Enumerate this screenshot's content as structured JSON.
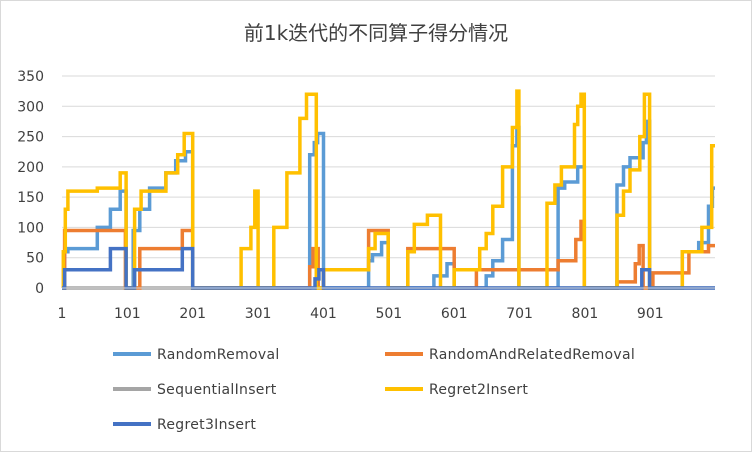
{
  "chart_data": {
    "type": "line",
    "title": "前1k迭代的不同算子得分情况",
    "xlabel": "",
    "ylabel": "",
    "ylim": [
      0,
      350
    ],
    "y_ticks": [
      "0",
      "50",
      "100",
      "150",
      "200",
      "250",
      "300",
      "350"
    ],
    "xlim": [
      1,
      1000
    ],
    "x_ticks": [
      "1",
      "101",
      "201",
      "301",
      "401",
      "501",
      "601",
      "701",
      "801",
      "901"
    ],
    "grid": "horizontal",
    "legend_position": "bottom",
    "series": [
      {
        "name": "RandomRemoval",
        "color": "#5B9BD5",
        "x": [
          1,
          5,
          5,
          10,
          10,
          55,
          55,
          75,
          75,
          90,
          90,
          99,
          99,
          101,
          101,
          110,
          110,
          120,
          120,
          135,
          135,
          160,
          160,
          175,
          175,
          190,
          190,
          201,
          201,
          380,
          380,
          387,
          387,
          392,
          392,
          401,
          401,
          470,
          470,
          476,
          476,
          490,
          490,
          500,
          500,
          570,
          570,
          590,
          590,
          601,
          601,
          650,
          650,
          660,
          660,
          675,
          675,
          690,
          690,
          697,
          697,
          700,
          700,
          760,
          760,
          770,
          770,
          790,
          790,
          800,
          800,
          850,
          850,
          860,
          860,
          870,
          870,
          890,
          890,
          895,
          895,
          900,
          900,
          950,
          950,
          975,
          975,
          990,
          990,
          996,
          996,
          1000
        ],
        "values": [
          0,
          0,
          60,
          60,
          65,
          65,
          100,
          100,
          130,
          130,
          160,
          160,
          0,
          0,
          0,
          0,
          95,
          95,
          130,
          130,
          165,
          165,
          190,
          190,
          210,
          210,
          225,
          225,
          0,
          0,
          220,
          220,
          240,
          240,
          255,
          255,
          0,
          0,
          45,
          45,
          55,
          55,
          75,
          75,
          0,
          0,
          20,
          20,
          40,
          40,
          0,
          0,
          20,
          20,
          45,
          45,
          80,
          80,
          235,
          235,
          265,
          265,
          0,
          0,
          165,
          165,
          175,
          175,
          200,
          200,
          0,
          0,
          170,
          170,
          200,
          200,
          215,
          215,
          240,
          240,
          275,
          275,
          0,
          0,
          60,
          60,
          75,
          75,
          135,
          135,
          165,
          165
        ]
      },
      {
        "name": "RandomAndRelatedRemoval",
        "color": "#ED7D31",
        "x": [
          1,
          5,
          5,
          98,
          98,
          101,
          101,
          120,
          120,
          185,
          185,
          201,
          201,
          380,
          380,
          385,
          385,
          393,
          393,
          401,
          401,
          470,
          470,
          500,
          500,
          530,
          530,
          601,
          601,
          635,
          635,
          760,
          760,
          787,
          787,
          795,
          795,
          800,
          800,
          850,
          850,
          878,
          878,
          884,
          884,
          890,
          890,
          905,
          905,
          960,
          960,
          990,
          990,
          1000
        ],
        "values": [
          0,
          0,
          95,
          95,
          0,
          0,
          0,
          0,
          65,
          65,
          95,
          95,
          0,
          0,
          35,
          35,
          65,
          65,
          0,
          0,
          30,
          30,
          95,
          95,
          0,
          0,
          65,
          65,
          0,
          0,
          30,
          30,
          45,
          45,
          80,
          80,
          110,
          110,
          0,
          0,
          10,
          10,
          40,
          40,
          70,
          70,
          0,
          0,
          25,
          25,
          60,
          60,
          70,
          70
        ]
      },
      {
        "name": "SequentialInsert",
        "color": "#A5A5A5",
        "x": [
          1,
          1000
        ],
        "values": [
          0,
          0
        ]
      },
      {
        "name": "Regret2Insert",
        "color": "#FFC000",
        "x": [
          1,
          3,
          3,
          6,
          6,
          10,
          10,
          55,
          55,
          90,
          90,
          99,
          99,
          101,
          101,
          112,
          112,
          122,
          122,
          160,
          160,
          178,
          178,
          188,
          188,
          201,
          201,
          275,
          275,
          290,
          290,
          296,
          296,
          301,
          301,
          325,
          325,
          345,
          345,
          365,
          365,
          375,
          375,
          390,
          390,
          401,
          401,
          470,
          470,
          480,
          480,
          500,
          500,
          530,
          530,
          540,
          540,
          560,
          560,
          580,
          580,
          601,
          601,
          640,
          640,
          650,
          650,
          660,
          660,
          675,
          675,
          690,
          690,
          697,
          697,
          700,
          700,
          743,
          743,
          755,
          755,
          765,
          765,
          785,
          785,
          790,
          790,
          795,
          795,
          800,
          800,
          850,
          850,
          860,
          860,
          870,
          870,
          885,
          885,
          892,
          892,
          900,
          900,
          950,
          950,
          980,
          980,
          995,
          995,
          1000
        ],
        "values": [
          0,
          0,
          60,
          60,
          130,
          130,
          160,
          160,
          165,
          165,
          190,
          190,
          0,
          0,
          0,
          0,
          130,
          130,
          160,
          160,
          190,
          190,
          220,
          220,
          255,
          255,
          0,
          0,
          65,
          65,
          100,
          100,
          160,
          160,
          0,
          0,
          100,
          100,
          190,
          190,
          280,
          280,
          320,
          320,
          0,
          0,
          30,
          30,
          65,
          65,
          90,
          90,
          0,
          0,
          60,
          60,
          105,
          105,
          120,
          120,
          0,
          0,
          30,
          30,
          65,
          65,
          90,
          90,
          135,
          135,
          200,
          200,
          265,
          265,
          325,
          325,
          0,
          0,
          140,
          140,
          170,
          170,
          200,
          200,
          270,
          270,
          300,
          300,
          320,
          320,
          0,
          0,
          120,
          120,
          160,
          160,
          195,
          195,
          250,
          250,
          320,
          320,
          0,
          0,
          60,
          60,
          100,
          100,
          235,
          235
        ]
      },
      {
        "name": "Regret3Insert",
        "color": "#4472C4",
        "x": [
          1,
          5,
          5,
          75,
          75,
          99,
          99,
          101,
          101,
          112,
          112,
          185,
          185,
          201,
          201,
          388,
          388,
          394,
          394,
          401,
          401,
          888,
          888,
          900,
          900,
          1000
        ],
        "values": [
          0,
          0,
          30,
          30,
          65,
          65,
          0,
          0,
          0,
          0,
          30,
          30,
          65,
          65,
          0,
          0,
          15,
          15,
          30,
          30,
          0,
          0,
          30,
          30,
          0,
          0
        ]
      }
    ]
  }
}
